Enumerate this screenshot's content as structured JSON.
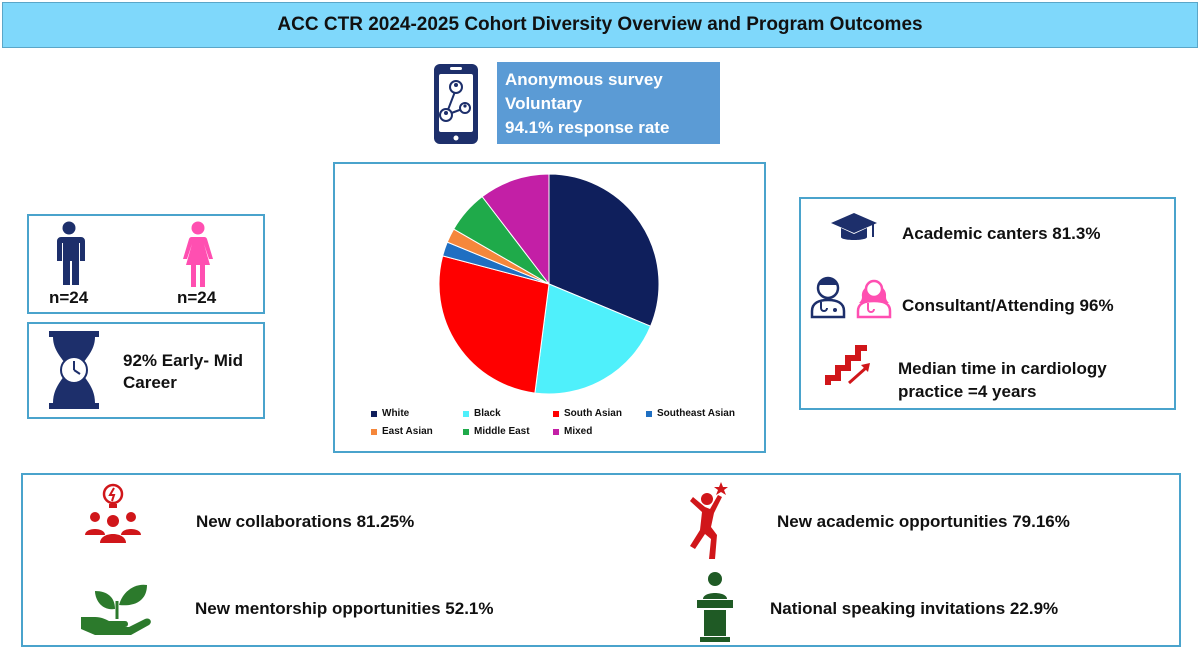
{
  "title": "ACC CTR 2024-2025 Cohort Diversity Overview and Program Outcomes",
  "survey": {
    "line1": "Anonymous survey",
    "line2": "Voluntary",
    "line3": "94.1% response rate"
  },
  "gender": {
    "male_label": "n=24",
    "female_label": "n=24"
  },
  "career": {
    "line1": "92% Early- Mid",
    "line2": "Career"
  },
  "practice": {
    "academic": "Academic canters 81.3%",
    "consultant": "Consultant/Attending 96%",
    "median_line1": "Median time in cardiology",
    "median_line2": "practice =4 years"
  },
  "outcomes": {
    "collaborations": "New collaborations  81.25%",
    "academic": "New academic opportunities 79.16%",
    "mentorship": "New mentorship opportunities 52.1%",
    "speaking": "National speaking invitations 22.9%"
  },
  "chart_data": {
    "type": "pie",
    "categories": [
      "White",
      "Black",
      "South Asian",
      "Southeast Asian",
      "East Asian",
      "Middle East",
      "Mixed"
    ],
    "values": [
      31.3,
      20.8,
      27.1,
      2.1,
      2.1,
      6.3,
      10.4
    ],
    "colors": [
      "#0f1f5c",
      "#4ff0fb",
      "#ff0000",
      "#1f6fc2",
      "#f5873b",
      "#1faa4a",
      "#c31fa6"
    ],
    "legend_position": "bottom",
    "start_angle_deg": 0,
    "direction": "clockwise"
  },
  "colors": {
    "title_bg": "#7fd8fb",
    "survey_bg": "#5b9bd5",
    "panel_border": "#4aa3cc",
    "navy": "#1d2f6b",
    "pink": "#ff4fb1",
    "red": "#d0161a",
    "green": "#2c7a2c",
    "dark_green": "#1f5a25"
  }
}
